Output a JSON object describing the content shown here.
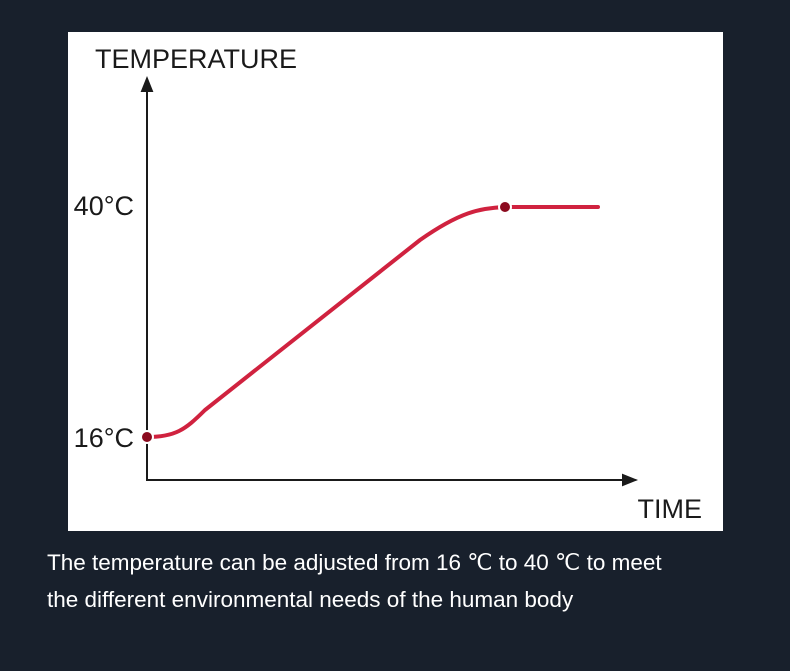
{
  "diagram": {
    "y_axis_label": "TEMPERATURE",
    "x_axis_label": "TIME",
    "high_label": "40°C",
    "low_label": "16°C"
  },
  "caption": {
    "lines": [
      "The temperature can be adjusted from 16 ℃ to 40 ℃ to meet",
      "the different environmental needs of the human body"
    ]
  }
}
